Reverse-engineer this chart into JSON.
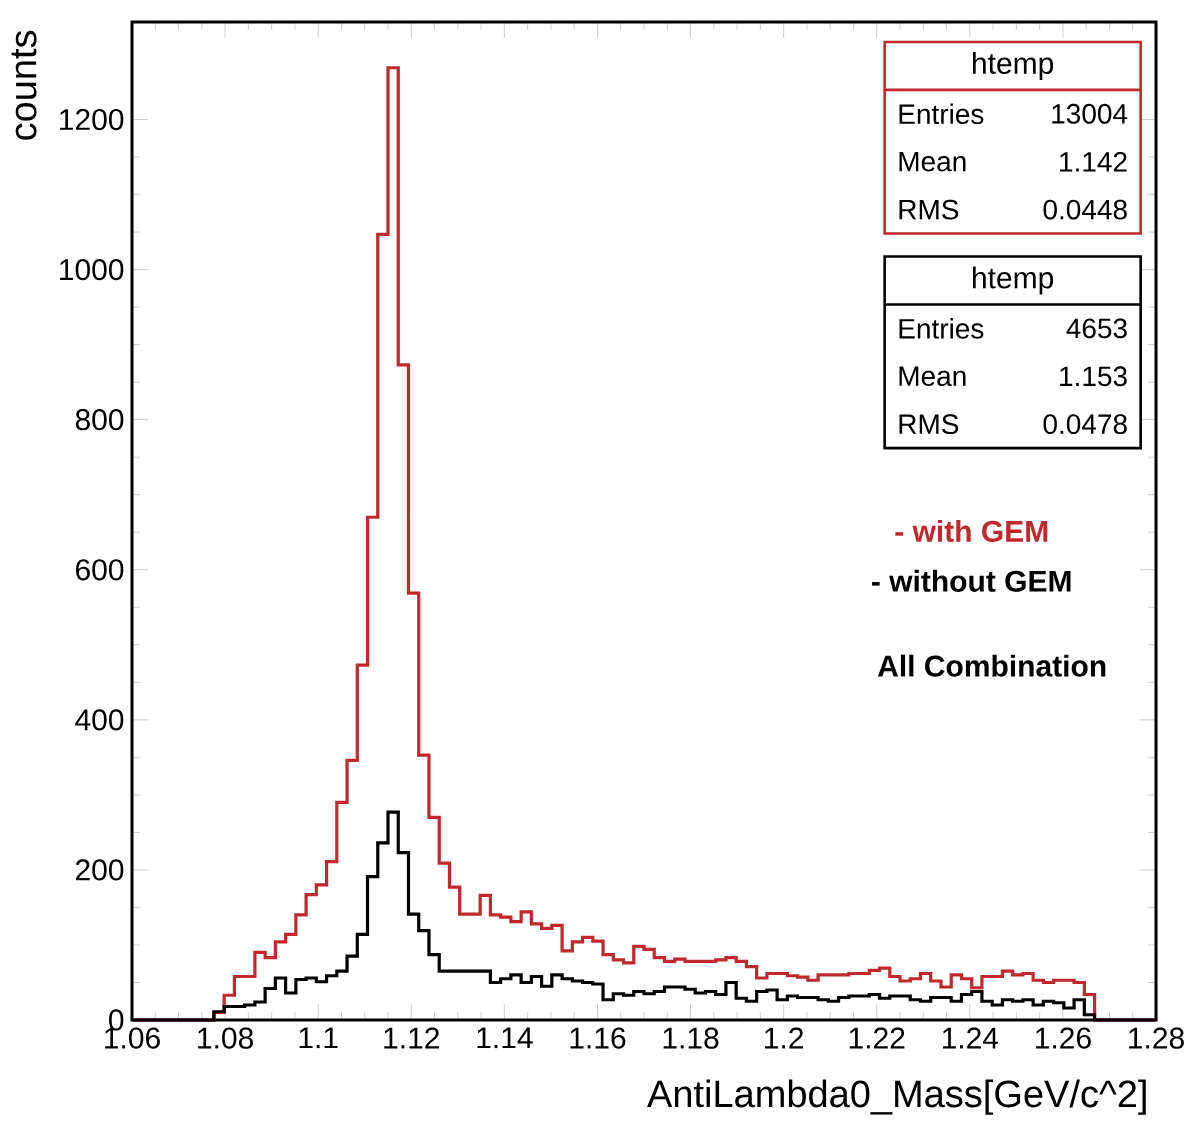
{
  "chart_data": {
    "type": "histogram",
    "xlabel": "AntiLambda0_Mass[GeV/c^2]",
    "ylabel": "counts",
    "bins": [
      1.06,
      1.0622,
      1.0644,
      1.0666,
      1.0688,
      1.071,
      1.0732,
      1.0754,
      1.0776,
      1.0798,
      1.082,
      1.0842,
      1.0864,
      1.0886,
      1.0908,
      1.093,
      1.0952,
      1.0974,
      1.0996,
      1.1018,
      1.104,
      1.1062,
      1.1084,
      1.1106,
      1.1128,
      1.115,
      1.1172,
      1.1194,
      1.1216,
      1.1238,
      1.126,
      1.1282,
      1.1304,
      1.1326,
      1.1348,
      1.137,
      1.1392,
      1.1414,
      1.1436,
      1.1458,
      1.148,
      1.1502,
      1.1524,
      1.1546,
      1.1568,
      1.159,
      1.1612,
      1.1634,
      1.1656,
      1.1678,
      1.17,
      1.1722,
      1.1744,
      1.1766,
      1.1788,
      1.181,
      1.1832,
      1.1854,
      1.1876,
      1.1898,
      1.192,
      1.1942,
      1.1964,
      1.1986,
      1.2008,
      1.203,
      1.2052,
      1.2074,
      1.2096,
      1.2118,
      1.214,
      1.2162,
      1.2184,
      1.2206,
      1.2228,
      1.225,
      1.2272,
      1.2294,
      1.2316,
      1.2338,
      1.236,
      1.2382,
      1.2404,
      1.2426,
      1.2448,
      1.247,
      1.2492,
      1.2514,
      1.2536,
      1.2558,
      1.258,
      1.2602,
      1.2624,
      1.2646,
      1.2668,
      1.269,
      1.2712,
      1.2734,
      1.2756,
      1.2778,
      1.28
    ],
    "series": [
      {
        "name": "- with GEM",
        "color": "#c0282d",
        "values": [
          0,
          0,
          0,
          0,
          0,
          0,
          0,
          0,
          10,
          33,
          58,
          58,
          90,
          83,
          104,
          114,
          140,
          167,
          180,
          211,
          290,
          346,
          473,
          670,
          1047,
          1269,
          873,
          569,
          353,
          270,
          209,
          177,
          141,
          141,
          166,
          140,
          137,
          131,
          144,
          128,
          122,
          126,
          92,
          104,
          110,
          105,
          87,
          80,
          76,
          98,
          94,
          83,
          78,
          81,
          78,
          78,
          78,
          80,
          83,
          78,
          71,
          56,
          62,
          62,
          59,
          57,
          53,
          60,
          60,
          60,
          62,
          62,
          66,
          69,
          58,
          52,
          55,
          62,
          52,
          44,
          60,
          55,
          43,
          58,
          58,
          65,
          60,
          62,
          53,
          50,
          53,
          53,
          50,
          34,
          0,
          0,
          0,
          0,
          0,
          0
        ]
      },
      {
        "name": "- without GEM",
        "color": "#000000",
        "values": [
          0,
          0,
          0,
          0,
          0,
          0,
          0,
          0,
          11,
          18,
          18,
          20,
          24,
          42,
          56,
          36,
          54,
          56,
          51,
          59,
          65,
          85,
          114,
          191,
          236,
          277,
          223,
          141,
          119,
          87,
          65,
          65,
          65,
          65,
          65,
          50,
          55,
          60,
          50,
          58,
          45,
          60,
          55,
          52,
          50,
          48,
          27,
          35,
          33,
          38,
          35,
          38,
          44,
          44,
          41,
          36,
          38,
          34,
          50,
          29,
          25,
          38,
          40,
          27,
          32,
          30,
          30,
          27,
          25,
          30,
          32,
          32,
          34,
          29,
          32,
          32,
          27,
          25,
          30,
          30,
          25,
          34,
          38,
          25,
          20,
          27,
          25,
          27,
          20,
          25,
          23,
          16,
          27,
          7,
          0,
          0,
          0,
          0,
          0,
          0
        ]
      }
    ],
    "xlim": [
      1.06,
      1.28
    ],
    "ylim": [
      0,
      1330
    ],
    "xticks": [
      1.06,
      1.08,
      1.1,
      1.12,
      1.14,
      1.16,
      1.18,
      1.2,
      1.22,
      1.24,
      1.26,
      1.28
    ],
    "yticks": [
      0,
      200,
      400,
      600,
      800,
      1000,
      1200
    ],
    "grid": false,
    "legend": "right",
    "annotations": [
      "htemp",
      "Entries",
      "13004",
      "Mean",
      "1.142",
      "RMS",
      "0.0448",
      "htemp",
      "Entries",
      "4653",
      "Mean",
      "1.153",
      "RMS",
      "0.0478",
      "All Combination"
    ]
  }
}
